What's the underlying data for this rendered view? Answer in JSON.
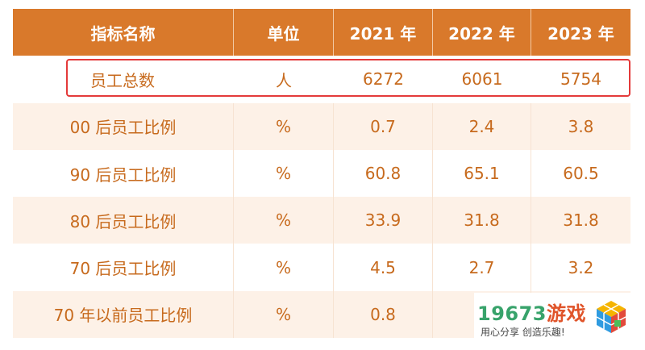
{
  "table": {
    "headers": [
      "指标名称",
      "单位",
      "2021 年",
      "2022 年",
      "2023 年"
    ],
    "rows": [
      [
        "员工总数",
        "人",
        "6272",
        "6061",
        "5754"
      ],
      [
        "00 后员工比例",
        "%",
        "0.7",
        "2.4",
        "3.8"
      ],
      [
        "90 后员工比例",
        "%",
        "60.8",
        "65.1",
        "60.5"
      ],
      [
        "80 后员工比例",
        "%",
        "33.9",
        "31.8",
        "31.8"
      ],
      [
        "70 后员工比例",
        "%",
        "4.5",
        "2.7",
        "3.2"
      ],
      [
        "70 年以前员工比例",
        "%",
        "0.8",
        "",
        ""
      ]
    ]
  },
  "watermark": {
    "brand": "19673",
    "brand_suffix": "游戏",
    "slogan": "用心分享 创造乐趣!"
  },
  "colors": {
    "header_bg": "#d9792b",
    "text": "#c76a1d",
    "row_alt_bg": "#fdf1e7",
    "highlight_border": "#e43a3a"
  }
}
